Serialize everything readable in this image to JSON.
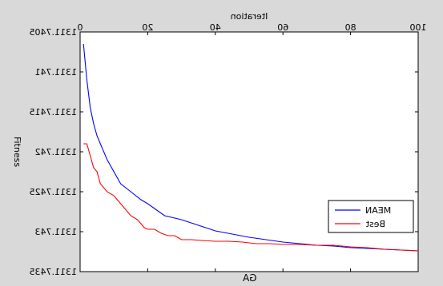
{
  "chart_data": {
    "type": "line",
    "title": "GA",
    "xlabel": "Iteration",
    "ylabel": "Fitness",
    "xlim": [
      0,
      100
    ],
    "ylim": [
      1311.7405,
      1311.7435
    ],
    "x_ticks": [
      0,
      20,
      40,
      60,
      80,
      100
    ],
    "x_tick_labels": [
      "0",
      "20",
      "40",
      "60",
      "80",
      "100"
    ],
    "y_ticks": [
      1311.7405,
      1311.741,
      1311.7415,
      1311.742,
      1311.7425,
      1311.743,
      1311.7435
    ],
    "y_tick_labels": [
      "1311.7405",
      "1311.741",
      "1311.7415",
      "1311.742",
      "1311.7425",
      "1311.743",
      "1311.7435"
    ],
    "mirrored": true,
    "y_reversed": true,
    "grid": false,
    "legend_position": "bottom-right",
    "series": [
      {
        "name": "MEAN",
        "color": "#0000ff",
        "x": [
          1,
          2,
          3,
          4,
          5,
          6,
          8,
          10,
          12,
          15,
          18,
          20,
          25,
          30,
          35,
          40,
          45,
          50,
          55,
          60,
          65,
          70,
          75,
          80,
          85,
          90,
          95,
          100
        ],
        "y": [
          1311.74065,
          1311.7411,
          1311.74145,
          1311.74165,
          1311.7418,
          1311.7419,
          1311.7421,
          1311.74225,
          1311.7424,
          1311.7425,
          1311.7426,
          1311.74265,
          1311.7428,
          1311.74285,
          1311.74292,
          1311.74299,
          1311.74303,
          1311.74307,
          1311.7431,
          1311.74313,
          1311.74315,
          1311.74317,
          1311.74318,
          1311.7432,
          1311.74321,
          1311.74322,
          1311.74323,
          1311.74324
        ]
      },
      {
        "name": "Best",
        "color": "#ff0000",
        "x": [
          1,
          2,
          3,
          4,
          5,
          6,
          8,
          10,
          11,
          13,
          15,
          17,
          19,
          20,
          22,
          24,
          26,
          28,
          30,
          33,
          36,
          40,
          44,
          48,
          52,
          56,
          60,
          65,
          70,
          75,
          80,
          85,
          90,
          95,
          100
        ],
        "y": [
          1311.7419,
          1311.7419,
          1311.74205,
          1311.7422,
          1311.74225,
          1311.7424,
          1311.7425,
          1311.74255,
          1311.7426,
          1311.7427,
          1311.7428,
          1311.74285,
          1311.74295,
          1311.74297,
          1311.74297,
          1311.74302,
          1311.74305,
          1311.74305,
          1311.7431,
          1311.7431,
          1311.74311,
          1311.74312,
          1311.74312,
          1311.74313,
          1311.74315,
          1311.74315,
          1311.74316,
          1311.74316,
          1311.74317,
          1311.74317,
          1311.74319,
          1311.7432,
          1311.74322,
          1311.74323,
          1311.74324
        ]
      }
    ]
  }
}
